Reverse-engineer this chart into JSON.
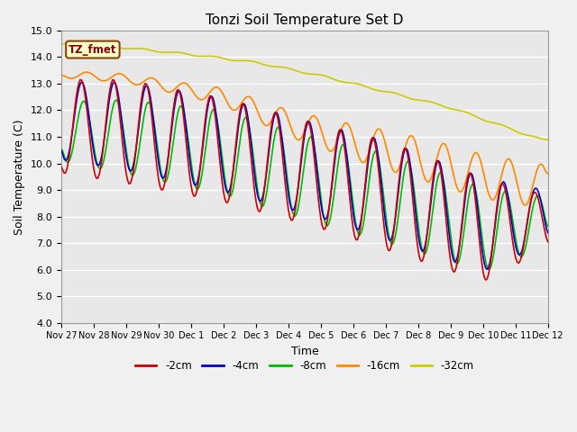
{
  "title": "Tonzi Soil Temperature Set D",
  "xlabel": "Time",
  "ylabel": "Soil Temperature (C)",
  "ylim": [
    4.0,
    15.0
  ],
  "yticks": [
    4.0,
    5.0,
    6.0,
    7.0,
    8.0,
    9.0,
    10.0,
    11.0,
    12.0,
    13.0,
    14.0,
    15.0
  ],
  "colors": {
    "-2cm": "#cc0000",
    "-4cm": "#0000cc",
    "-8cm": "#00bb00",
    "-16cm": "#ff8800",
    "-32cm": "#cccc00"
  },
  "legend_labels": [
    "-2cm",
    "-4cm",
    "-8cm",
    "-16cm",
    "-32cm"
  ],
  "xtick_labels": [
    "Nov 27",
    "Nov 28",
    "Nov 29",
    "Nov 30",
    "Dec 1",
    "Dec 2",
    "Dec 3",
    "Dec 4",
    "Dec 5",
    "Dec 6",
    "Dec 7",
    "Dec 8",
    "Dec 9",
    "Dec 10",
    "Dec 11",
    "Dec 12"
  ],
  "annotation_text": "TZ_fmet",
  "annotation_bg": "#ffffcc",
  "annotation_border": "#884400",
  "fig_bg": "#f0f0f0",
  "plot_bg": "#e8e8e8",
  "grid_color": "#ffffff",
  "figsize": [
    6.4,
    4.8
  ],
  "dpi": 100
}
